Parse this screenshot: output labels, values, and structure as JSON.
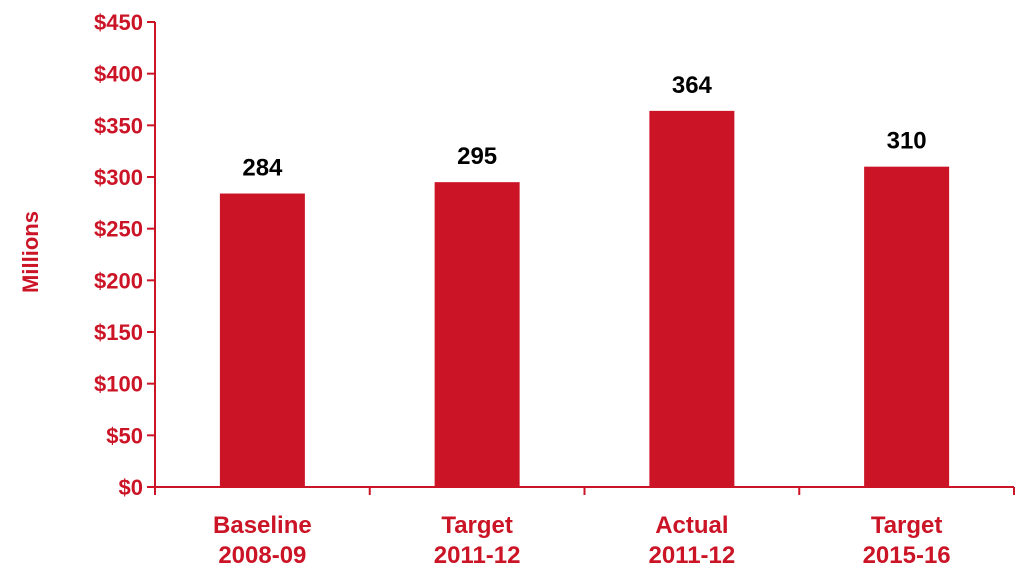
{
  "colors": {
    "bar": "#cc1427",
    "axis": "#cc1427",
    "text_accent": "#cc1427",
    "data_label": "#000000",
    "background": "#ffffff"
  },
  "chart_data": {
    "type": "bar",
    "title": "",
    "xlabel": "",
    "ylabel": "Millions",
    "categories": [
      [
        "Baseline",
        "2008-09"
      ],
      [
        "Target",
        "2011-12"
      ],
      [
        "Actual",
        "2011-12"
      ],
      [
        "Target",
        "2015-16"
      ]
    ],
    "values": [
      284,
      295,
      364,
      310
    ],
    "data_labels": [
      "284",
      "295",
      "364",
      "310"
    ],
    "ylim": [
      0,
      450
    ],
    "yticks": [
      0,
      50,
      100,
      150,
      200,
      250,
      300,
      350,
      400,
      450
    ],
    "ytick_labels": [
      "$0",
      "$50",
      "$100",
      "$150",
      "$200",
      "$250",
      "$300",
      "$350",
      "$400",
      "$450"
    ],
    "grid": false,
    "legend": "none"
  }
}
